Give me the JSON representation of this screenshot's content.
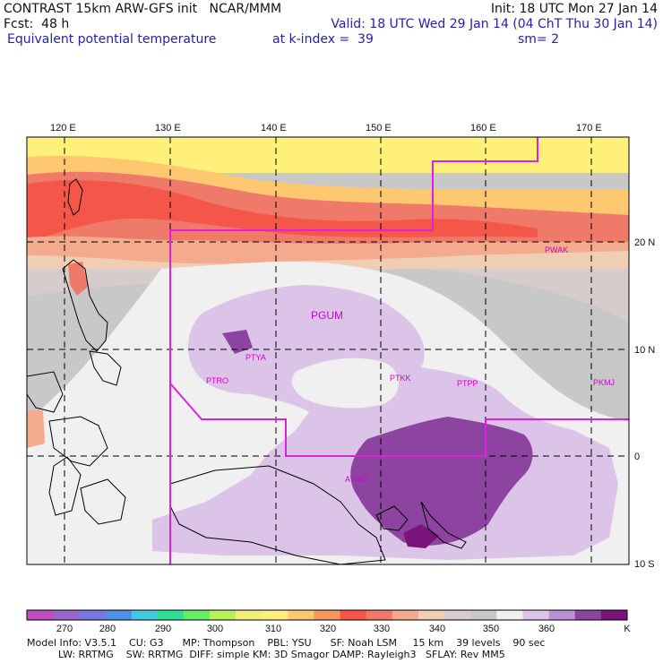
{
  "header": {
    "line1_left": "CONTRAST 15km ARW-GFS init   NCAR/MMM",
    "line1_right": "Init: 18 UTC Mon 27 Jan 14",
    "line2_left": "Fcst:  48 h",
    "line2_right": "Valid: 18 UTC Wed 29 Jan 14 (04 ChT Thu 30 Jan 14)",
    "line3_left": "Equivalent potential temperature",
    "line3_mid": "at k-index =  39",
    "line3_right": "sm= 2"
  },
  "map": {
    "lon_labels": [
      "120 E",
      "130 E",
      "140 E",
      "150 E",
      "160 E",
      "170 E"
    ],
    "lat_labels": [
      "20 N",
      "10 N",
      "0",
      "10 S"
    ],
    "stations": [
      "PWAK",
      "PGUM",
      "PTYA",
      "PTRO",
      "PTKK",
      "PTPP",
      "PKMJ",
      "AYMO"
    ]
  },
  "colorbar": {
    "units": "K",
    "tick_labels": [
      "270",
      "280",
      "290",
      "300",
      "310",
      "320",
      "330",
      "340",
      "350",
      "360"
    ],
    "colors": [
      "#c04dc0",
      "#9966cc",
      "#7777dd",
      "#4f8fe8",
      "#44c8e0",
      "#33dd99",
      "#66ee66",
      "#b6f05a",
      "#eef07a",
      "#fff07a",
      "#fdc870",
      "#f9965e",
      "#f4574a",
      "#f07a6a",
      "#f4aa8c",
      "#f0cdb5",
      "#d6cccc",
      "#c8c8c8",
      "#f0f0f0",
      "#dcc4e8",
      "#ba90d4",
      "#8c44a0",
      "#7a137a"
    ]
  },
  "footer": {
    "line1": "Model Info: V3.5.1    CU: G3      MP: Thompson    PBL: YSU      SF: Noah LSM     15 km    39 levels    90 sec",
    "line2": "          LW: RRTMG    SW: RRTMG  DIFF: simple KM: 3D Smagor DAMP: Rayleigh3   SFLAY: Rev MM5"
  }
}
